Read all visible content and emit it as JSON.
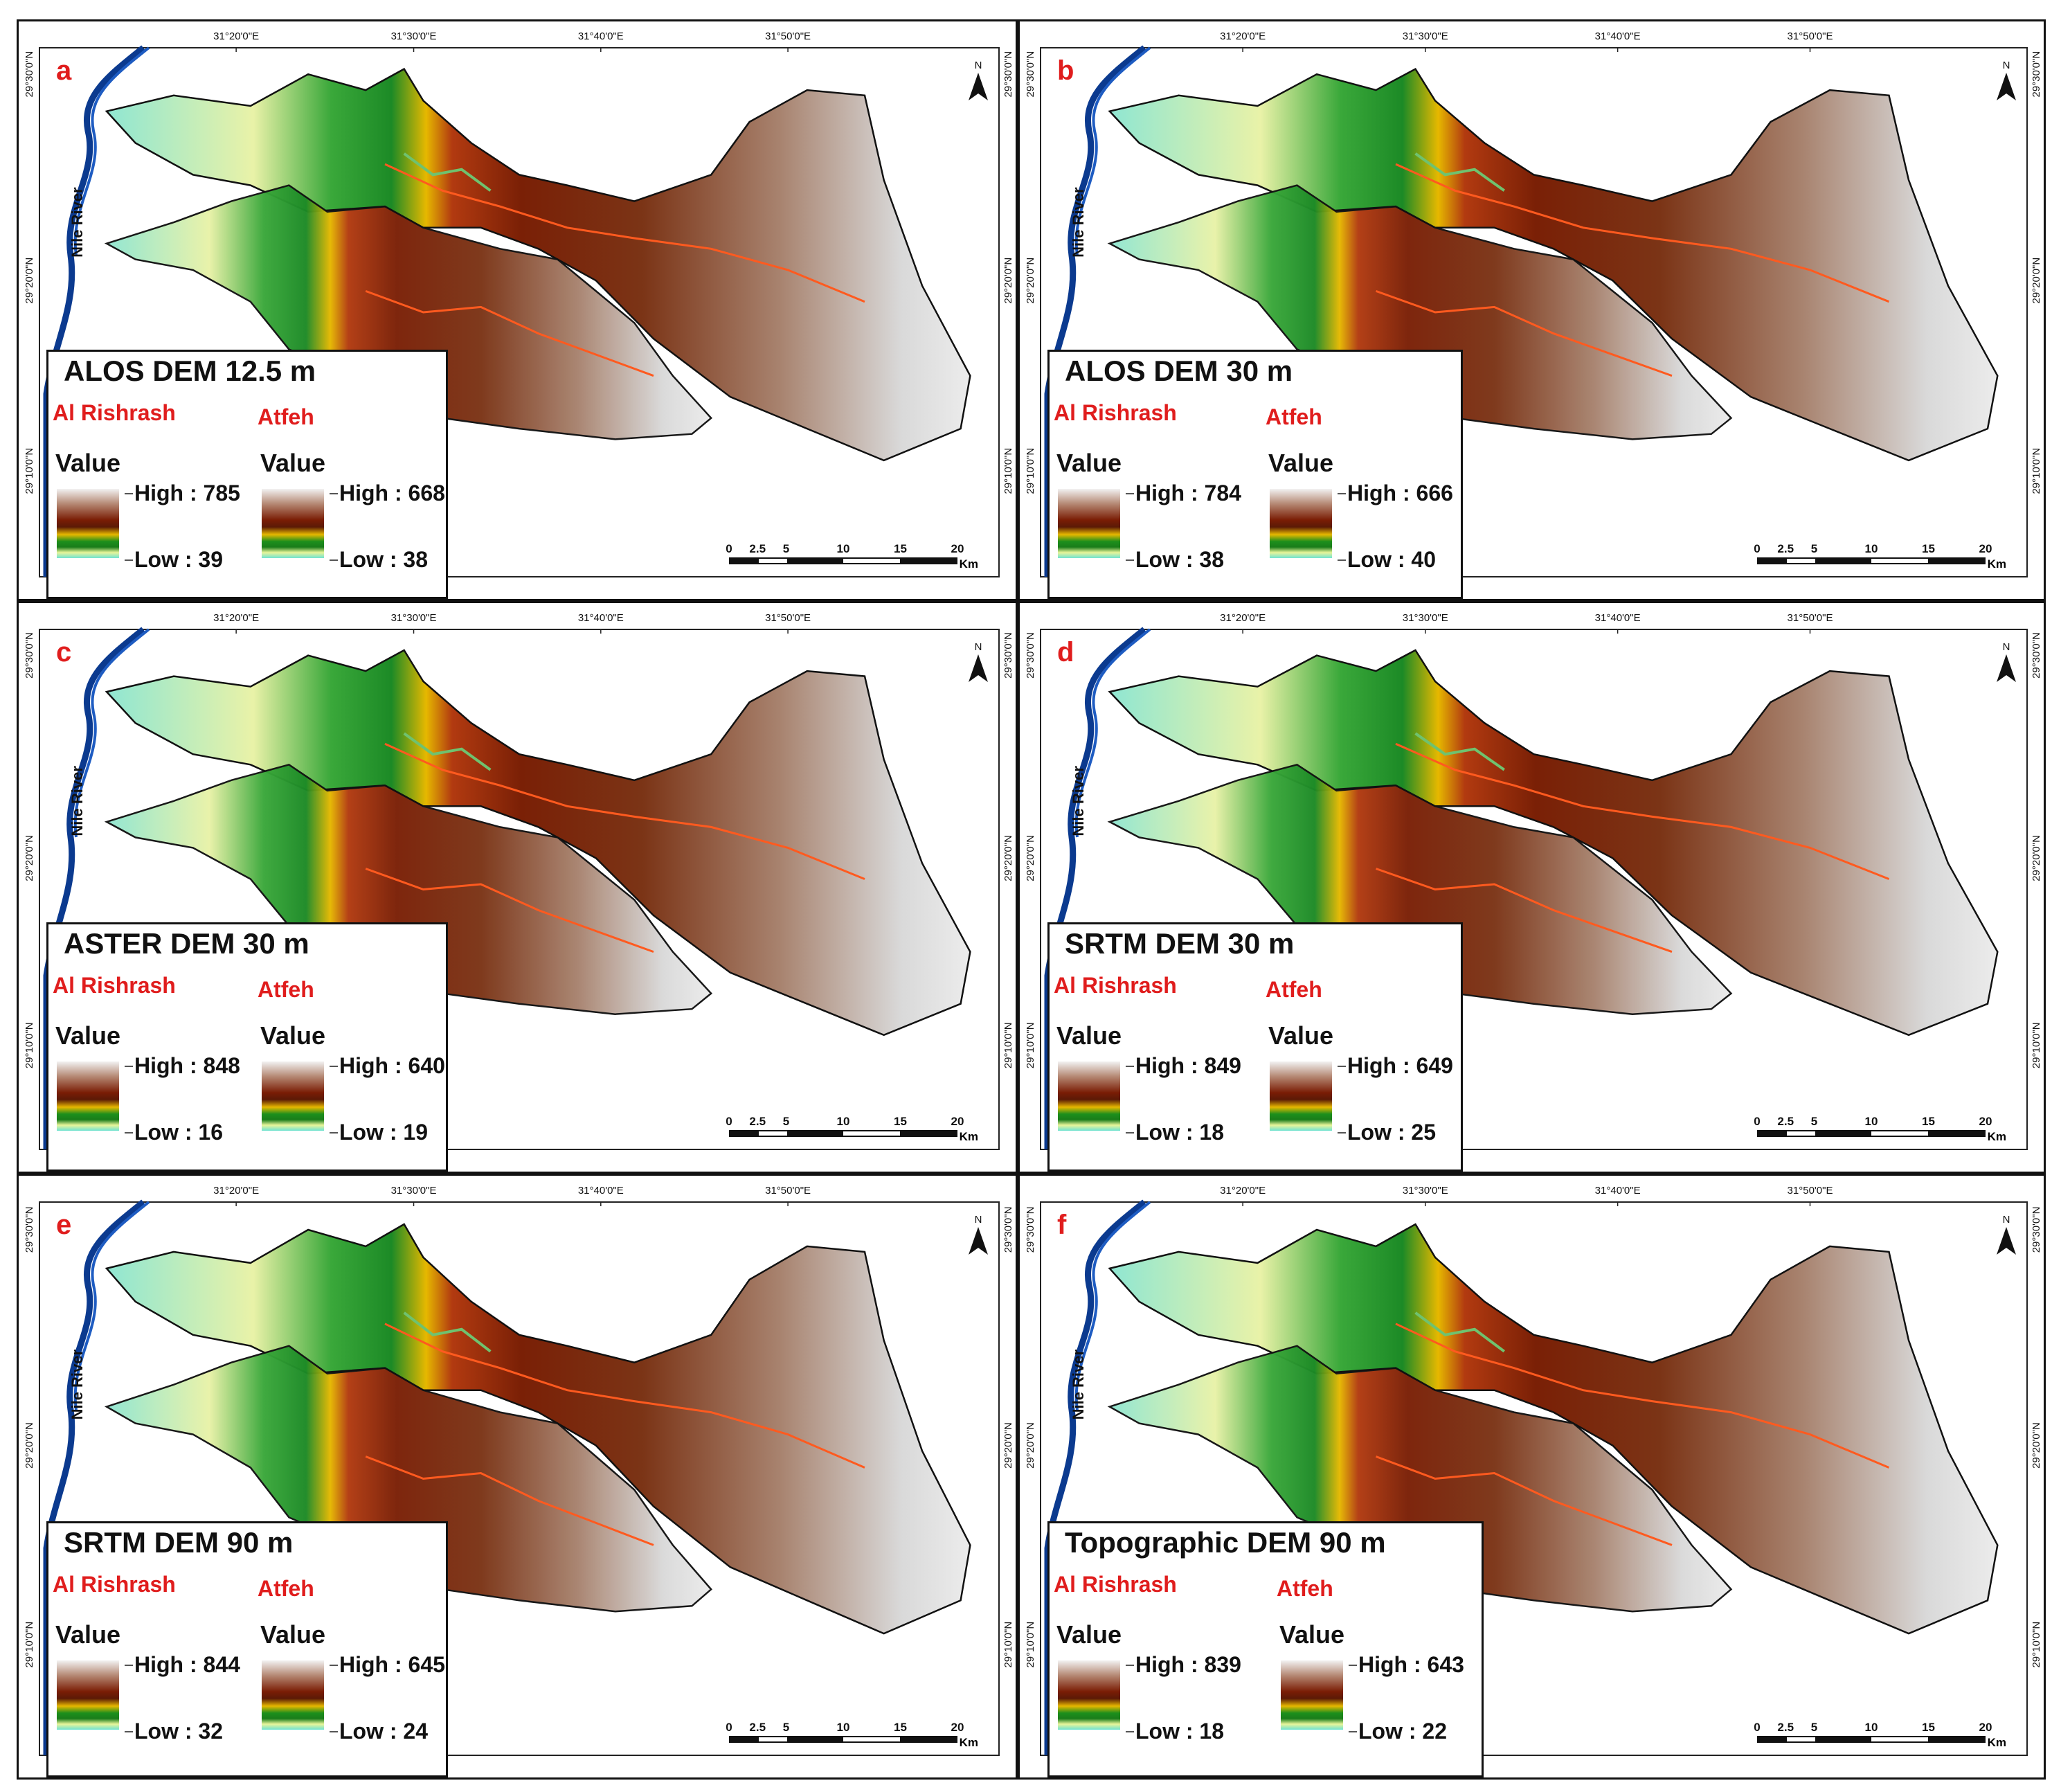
{
  "lon_ticks": [
    "31°20'0\"E",
    "31°30'0\"E",
    "31°40'0\"E",
    "31°50'0\"E"
  ],
  "lat_ticks": [
    "29°30'0\"N",
    "29°20'0\"N",
    "29°10'0\"N"
  ],
  "river_label": "Nile River",
  "north_label": "N",
  "scale": {
    "ticks": [
      "0",
      "2.5",
      "5",
      "10",
      "15",
      "20"
    ],
    "unit": "Km"
  },
  "basins": [
    "Al Rishrash",
    "Atfeh"
  ],
  "value_label": "Value",
  "ramp_colors": [
    "#f2f2f2",
    "#b48772",
    "#7a1d05",
    "#e6b800",
    "#1c8f1c",
    "#e8f59a",
    "#6fe2d2"
  ],
  "panels": [
    {
      "letter": "a",
      "title": "ALOS DEM 12.5  m",
      "rishrash": {
        "high": "High : 785",
        "low": "Low : 39"
      },
      "atfeh": {
        "high": "High : 668",
        "low": "Low : 38"
      }
    },
    {
      "letter": "b",
      "title": "ALOS DEM 30 m",
      "rishrash": {
        "high": "High : 784",
        "low": "Low : 38"
      },
      "atfeh": {
        "high": "High : 666",
        "low": "Low : 40"
      }
    },
    {
      "letter": "c",
      "title": "ASTER DEM 30 m",
      "rishrash": {
        "high": "High : 848",
        "low": "Low : 16"
      },
      "atfeh": {
        "high": "High : 640",
        "low": "Low : 19"
      }
    },
    {
      "letter": "d",
      "title": "SRTM DEM 30 m",
      "rishrash": {
        "high": "High : 849",
        "low": "Low : 18"
      },
      "atfeh": {
        "high": "High : 649",
        "low": "Low : 25"
      }
    },
    {
      "letter": "e",
      "title": "SRTM DEM 90 m",
      "rishrash": {
        "high": "High : 844",
        "low": "Low : 32"
      },
      "atfeh": {
        "high": "High : 645",
        "low": "Low : 24"
      }
    },
    {
      "letter": "f",
      "title": "Topographic DEM 90 m",
      "rishrash": {
        "high": "High : 839",
        "low": "Low : 18"
      },
      "atfeh": {
        "high": "High : 643",
        "low": "Low : 22"
      }
    }
  ]
}
